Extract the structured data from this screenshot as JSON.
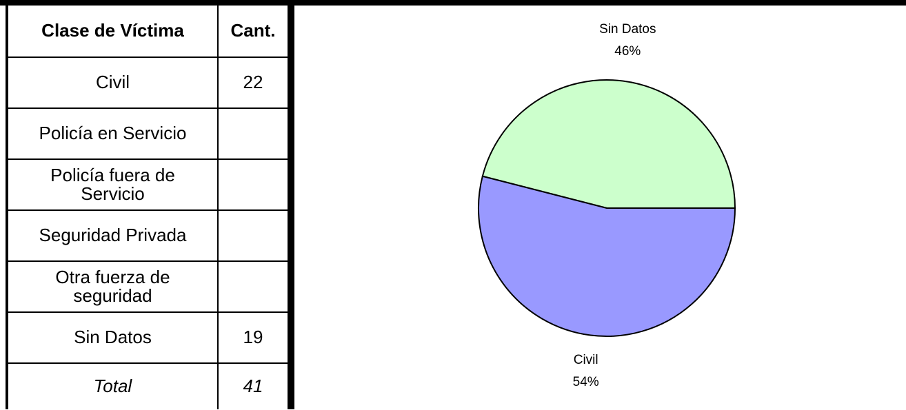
{
  "table": {
    "header": [
      "Clase de Víctima",
      "Cant."
    ],
    "rows": [
      {
        "label": "Civil",
        "count": 22
      },
      {
        "label": "Policía en Servicio"
      },
      {
        "label": "Policía fuera de Servicio"
      },
      {
        "label": "Seguridad Privada"
      },
      {
        "label": "Otra fuerza de seguridad"
      },
      {
        "label": "Sin Datos",
        "count": 19
      }
    ],
    "total": {
      "label": "Total",
      "count": 41
    }
  },
  "chart_data": {
    "type": "pie",
    "categories": [
      "Sin Datos",
      "Civil"
    ],
    "values": [
      46,
      54
    ],
    "value_labels": [
      "46%",
      "54%"
    ],
    "colors": [
      "#ccffcc",
      "#9999ff"
    ]
  }
}
